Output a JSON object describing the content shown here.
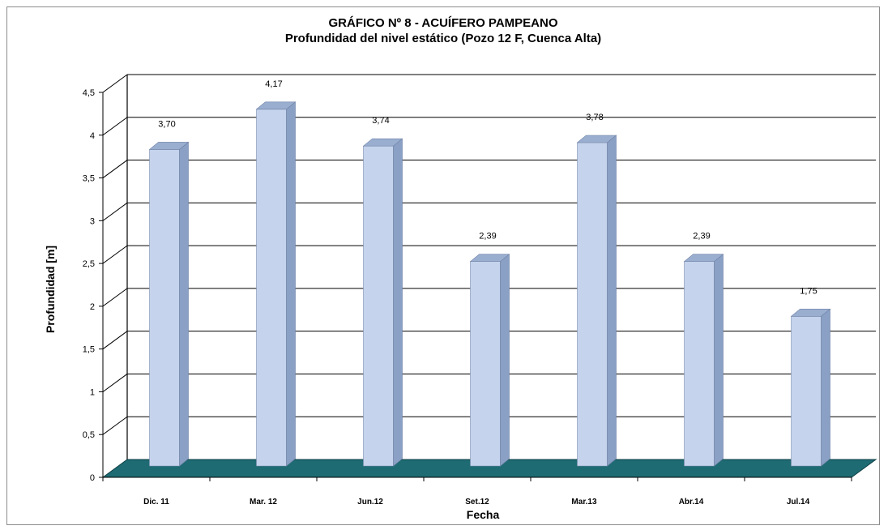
{
  "chart_data": {
    "type": "bar",
    "title": "GRÁFICO Nº 8 - ACUÍFERO PAMPEANO",
    "subtitle": "Profundidad del nivel estático (Pozo 12 F, Cuenca Alta)",
    "xlabel": "Fecha",
    "ylabel": "Profundidad [m]",
    "categories": [
      "Dic. 11",
      "Mar. 12",
      "Jun.12",
      "Set.12",
      "Mar.13",
      "Abr.14",
      "Jul.14"
    ],
    "values": [
      3.7,
      4.17,
      3.74,
      2.39,
      3.78,
      2.39,
      1.75
    ],
    "data_labels": [
      "3,70",
      "4,17",
      "3,74",
      "2,39",
      "3,78",
      "2,39",
      "1,75"
    ],
    "ylim": [
      0,
      4.5
    ],
    "yticks": [
      0,
      0.5,
      1,
      1.5,
      2,
      2.5,
      3,
      3.5,
      4,
      4.5
    ],
    "ytick_labels": [
      "0",
      "0,5",
      "1",
      "1,5",
      "2",
      "2,5",
      "3",
      "3,5",
      "4",
      "4,5"
    ],
    "grid": true,
    "legend": "none",
    "colors": {
      "bar_front": "#c5d3ec",
      "bar_side": "#8aa0c4",
      "bar_top": "#9aaed0",
      "floor": "#1e6b73",
      "grid": "#000000",
      "wall": "#ffffff"
    }
  }
}
